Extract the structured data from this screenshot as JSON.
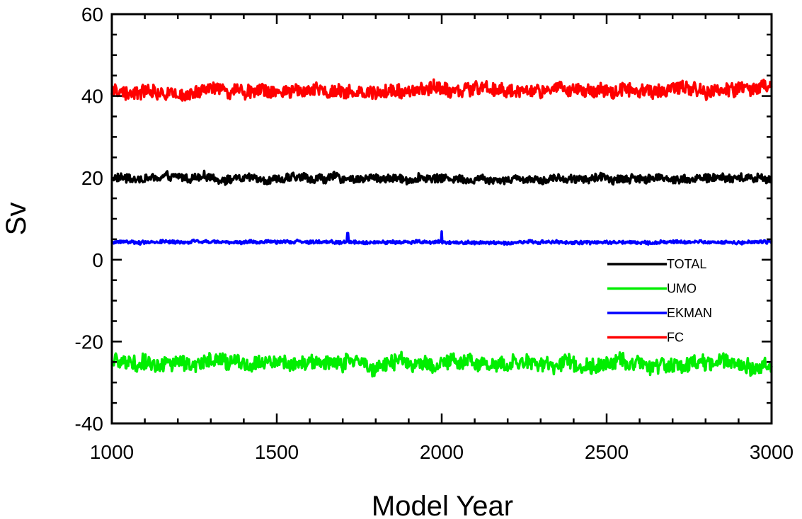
{
  "chart_data": {
    "type": "line",
    "title": "",
    "xlabel": "Model Year",
    "ylabel": "Sv",
    "xlim": [
      1000,
      3000
    ],
    "ylim": [
      -40,
      60
    ],
    "x_ticks": [
      1000,
      1500,
      2000,
      2500,
      3000
    ],
    "x_tick_labels": [
      "1000",
      "1500",
      "2000",
      "2500",
      "3000"
    ],
    "y_ticks": [
      -40,
      -20,
      0,
      20,
      40,
      60
    ],
    "y_tick_labels": [
      "-40",
      "-20",
      "0",
      "20",
      "40",
      "60"
    ],
    "x_minor_step": 100,
    "y_minor_step": 5,
    "grid": false,
    "legend_position": "lower-right",
    "series": [
      {
        "name": "TOTAL",
        "color": "#000000",
        "mean": 19.9,
        "amplitude": 1.2,
        "min": 17.3,
        "max": 22.3
      },
      {
        "name": "UMO",
        "color": "#00ee00",
        "mean": -25.3,
        "amplitude": 2.2,
        "min": -31.0,
        "max": -20.0
      },
      {
        "name": "EKMAN",
        "color": "#0000ff",
        "mean": 4.3,
        "amplitude": 0.45,
        "min": 3.3,
        "max": 6.9,
        "spikes": [
          [
            1715,
            6.5
          ],
          [
            2000,
            6.9
          ]
        ]
      },
      {
        "name": "FC",
        "color": "#ff0000",
        "mean": 41.4,
        "amplitude": 1.9,
        "min": 35.8,
        "max": 46.0
      }
    ]
  }
}
